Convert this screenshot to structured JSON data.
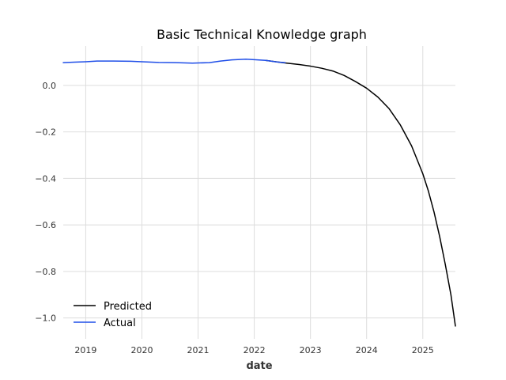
{
  "chart_data": {
    "type": "line",
    "title": "Basic Technical Knowledge graph",
    "xlabel": "date",
    "ylabel": "",
    "xlim": [
      2018.6,
      2025.58
    ],
    "ylim": [
      -1.09,
      0.17
    ],
    "xticks": [
      2019,
      2020,
      2021,
      2022,
      2023,
      2024,
      2025
    ],
    "yticks": [
      0.0,
      -0.2,
      -0.4,
      -0.6,
      -0.8,
      -1.0
    ],
    "ytick_labels": [
      "0.0",
      "−0.2",
      "−0.4",
      "−0.6",
      "−0.8",
      "−1.0"
    ],
    "grid": true,
    "legend_position": "bottom-left",
    "series": [
      {
        "name": "Predicted",
        "color": "#000000",
        "x": [
          2022.2,
          2022.5,
          2022.8,
          2023.0,
          2023.2,
          2023.4,
          2023.6,
          2023.8,
          2024.0,
          2024.2,
          2024.4,
          2024.6,
          2024.8,
          2025.0,
          2025.1,
          2025.2,
          2025.3,
          2025.4,
          2025.5,
          2025.58
        ],
        "values": [
          0.108,
          0.098,
          0.09,
          0.083,
          0.074,
          0.062,
          0.043,
          0.017,
          -0.012,
          -0.05,
          -0.1,
          -0.17,
          -0.26,
          -0.38,
          -0.455,
          -0.545,
          -0.65,
          -0.77,
          -0.9,
          -1.035
        ]
      },
      {
        "name": "Actual",
        "color": "#1f4ee8",
        "x": [
          2018.6,
          2018.8,
          2019.0,
          2019.2,
          2019.5,
          2019.8,
          2020.0,
          2020.3,
          2020.6,
          2020.9,
          2021.2,
          2021.4,
          2021.6,
          2021.85,
          2022.0,
          2022.2,
          2022.4,
          2022.55
        ],
        "values": [
          0.098,
          0.1,
          0.102,
          0.105,
          0.105,
          0.104,
          0.102,
          0.099,
          0.098,
          0.096,
          0.098,
          0.105,
          0.11,
          0.113,
          0.111,
          0.108,
          0.101,
          0.098
        ]
      }
    ]
  }
}
